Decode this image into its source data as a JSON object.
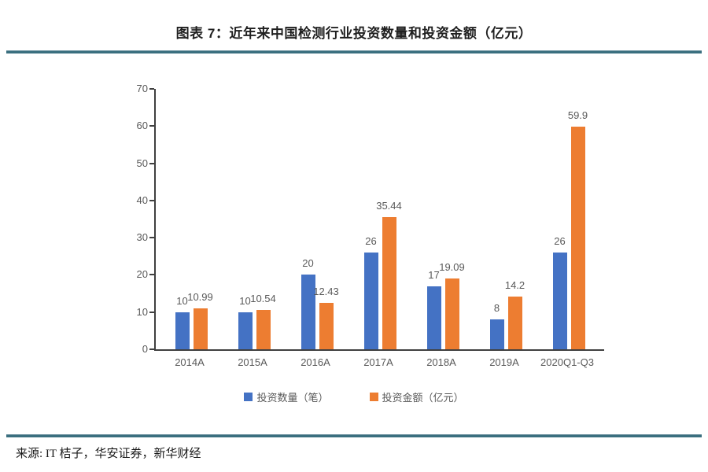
{
  "header": {
    "title": "图表 7：近年来中国检测行业投资数量和投资金额（亿元）"
  },
  "footer": {
    "source": "来源: IT 桔子，华安证券，新华财经"
  },
  "colors": {
    "rule_teal": "#3A6F7F",
    "axis": "#404040",
    "muted_text": "#595959",
    "series_blue": "#4472C4",
    "series_orange": "#ED7D31"
  },
  "chart_data": {
    "type": "bar",
    "title": "图表 7：近年来中国检测行业投资数量和投资金额（亿元）",
    "xlabel": "",
    "ylabel": "",
    "categories": [
      "2014A",
      "2015A",
      "2016A",
      "2017A",
      "2018A",
      "2019A",
      "2020Q1-Q3"
    ],
    "series": [
      {
        "name": "投资数量（笔）",
        "color": "#4472C4",
        "values": [
          10,
          10,
          20,
          26,
          17,
          8,
          26
        ],
        "labels": [
          "10",
          "10",
          "20",
          "26",
          "17",
          "8",
          "26"
        ]
      },
      {
        "name": "投资金额（亿元）",
        "color": "#ED7D31",
        "values": [
          10.99,
          10.54,
          12.43,
          35.44,
          19.09,
          14.2,
          59.9
        ],
        "labels": [
          "10.99",
          "10.54",
          "12.43",
          "35.44",
          "19.09",
          "14.2",
          "59.9"
        ]
      }
    ],
    "ylim": [
      0,
      70
    ],
    "yticks": [
      0,
      10,
      20,
      30,
      40,
      50,
      60,
      70
    ],
    "grid": false,
    "legend_position": "bottom",
    "value_labels": true
  }
}
